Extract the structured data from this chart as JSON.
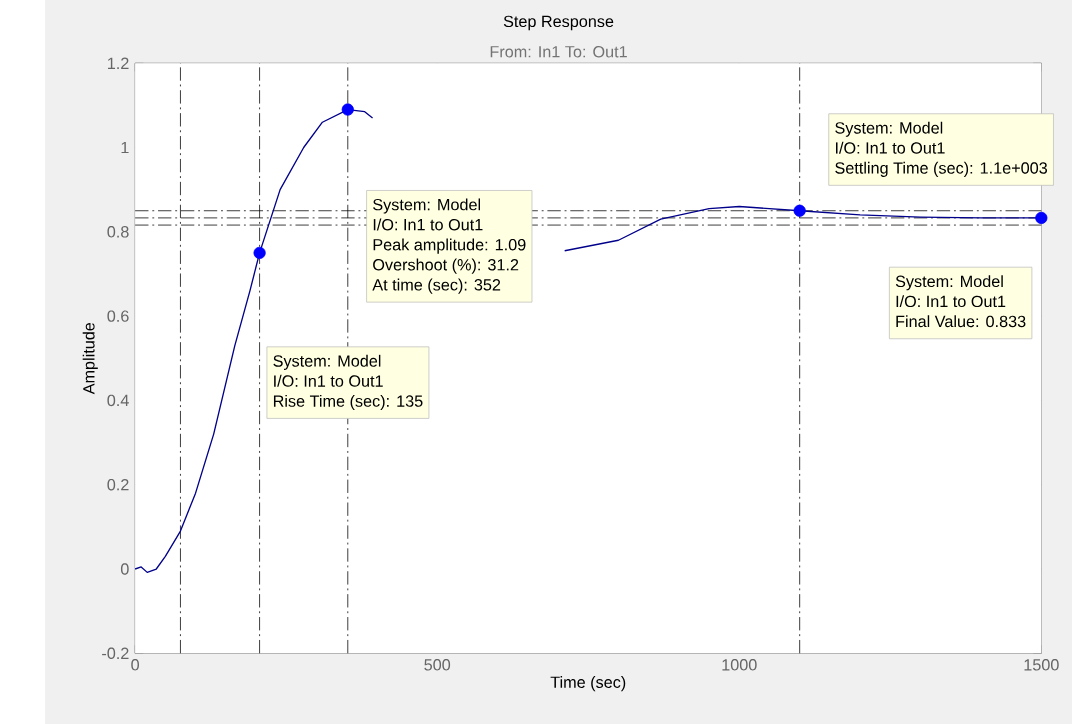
{
  "chart_data": {
    "type": "line",
    "title": "Step Response",
    "subtitle": "From: In1  To: Out1",
    "xlabel": "Time (sec)",
    "ylabel": "Amplitude",
    "xlim": [
      0,
      1500
    ],
    "xticks": [
      0,
      500,
      1000,
      1500
    ],
    "ylim": [
      -0.2,
      1.2
    ],
    "yticks": [
      -0.2,
      0,
      0.2,
      0.4,
      0.6,
      0.8,
      1,
      1.2
    ],
    "series": [
      {
        "color": "#00008b",
        "x": [
          0,
          10,
          20,
          35,
          50,
          75,
          100,
          130,
          165,
          190,
          206,
          240,
          279,
          310,
          352,
          380,
          393,
          550,
          711,
          800,
          870,
          950,
          1000,
          1100,
          1200,
          1300,
          1400,
          1500
        ],
        "values": [
          0,
          0.005,
          -0.008,
          0,
          0.03,
          0.09,
          0.18,
          0.32,
          0.53,
          0.66,
          0.75,
          0.9,
          1.0,
          1.06,
          1.09,
          1.085,
          1.07,
          null,
          0.755,
          0.78,
          0.83,
          0.855,
          0.86,
          0.85,
          0.84,
          0.835,
          0.833,
          0.833
        ]
      },
      {
        "type": "scatter",
        "color": "#0000ff",
        "marker": "circle",
        "x": [
          206,
          352,
          1100,
          1500
        ],
        "values": [
          0.75,
          1.09,
          0.85,
          0.833
        ]
      }
    ],
    "ref_lines": [
      {
        "axis": "y",
        "value": 0.85,
        "line_style": "dashed",
        "color": "#000000"
      },
      {
        "axis": "y",
        "value": 0.833,
        "line_style": "dashed",
        "color": "#000000"
      },
      {
        "axis": "y",
        "value": 0.816,
        "line_style": "dashed",
        "color": "#000000"
      },
      {
        "axis": "x",
        "value": 75,
        "line_style": "dashed",
        "color": "#000000"
      },
      {
        "axis": "x",
        "value": 206,
        "line_style": "dashed",
        "color": "#000000"
      },
      {
        "axis": "x",
        "value": 352,
        "line_style": "dashed",
        "color": "#000000"
      },
      {
        "axis": "x",
        "value": 1100,
        "line_style": "dashed",
        "color": "#000000"
      }
    ],
    "annotations": [
      "System: Model",
      "I/O: In1 to Out1",
      "Peak amplitude: 1.09",
      "Overshoot (%): 31.2",
      "At time (sec): 352",
      "System: Model",
      "I/O: In1 to Out1",
      "Rise Time (sec): 135",
      "System: Model",
      "I/O: In1 to Out1",
      "Settling Time (sec): 1.1e+003",
      "System: Model",
      "I/O: In1 to Out1",
      "Final Value: 0.833"
    ]
  }
}
